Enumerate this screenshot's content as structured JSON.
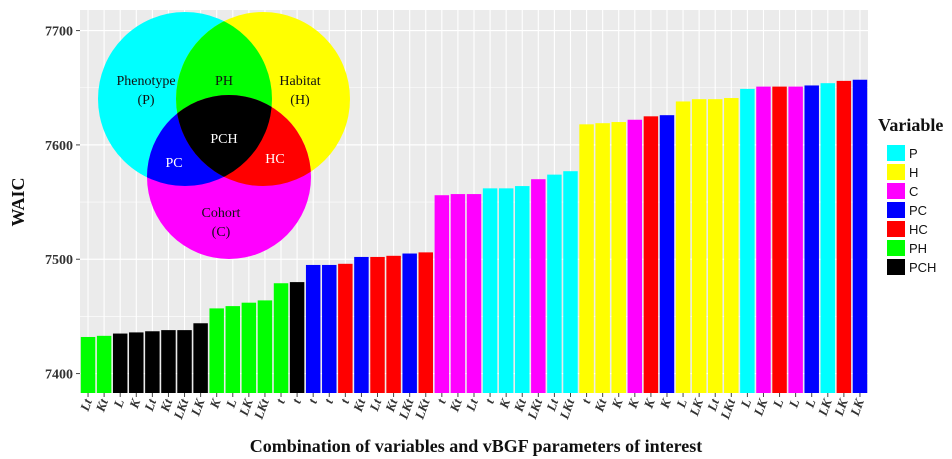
{
  "chart_data": {
    "type": "bar",
    "xlabel": "Combination of variables and vBGF parameters of interest",
    "ylabel": "WAIC",
    "ylim": [
      7383,
      7718
    ],
    "yticks": [
      7400,
      7500,
      7600,
      7700
    ],
    "grid": true,
    "legend": {
      "title": "Variable",
      "placement": "right",
      "entries": [
        {
          "name": "P",
          "color": "#00ffff"
        },
        {
          "name": "H",
          "color": "#ffff00"
        },
        {
          "name": "C",
          "color": "#ff00ff"
        },
        {
          "name": "PC",
          "color": "#0000ff"
        },
        {
          "name": "HC",
          "color": "#ff0000"
        },
        {
          "name": "PH",
          "color": "#00ff00"
        },
        {
          "name": "PCH",
          "color": "#000000"
        }
      ]
    },
    "bars": [
      {
        "label": "Lt",
        "variable": "PH",
        "value": 7432
      },
      {
        "label": "Kt",
        "variable": "PH",
        "value": 7433
      },
      {
        "label": "L",
        "variable": "PCH",
        "value": 7435
      },
      {
        "label": "K",
        "variable": "PCH",
        "value": 7436
      },
      {
        "label": "Lt",
        "variable": "PCH",
        "value": 7437
      },
      {
        "label": "Kt",
        "variable": "PCH",
        "value": 7438
      },
      {
        "label": "LKt",
        "variable": "PCH",
        "value": 7438
      },
      {
        "label": "LK",
        "variable": "PCH",
        "value": 7444
      },
      {
        "label": "K",
        "variable": "PH",
        "value": 7457
      },
      {
        "label": "L",
        "variable": "PH",
        "value": 7459
      },
      {
        "label": "LK",
        "variable": "PH",
        "value": 7462
      },
      {
        "label": "LKt",
        "variable": "PH",
        "value": 7464
      },
      {
        "label": "t",
        "variable": "PH",
        "value": 7479
      },
      {
        "label": "t",
        "variable": "PCH",
        "value": 7480
      },
      {
        "label": "t",
        "variable": "PC",
        "value": 7495
      },
      {
        "label": "t",
        "variable": "PC",
        "value": 7495
      },
      {
        "label": "t",
        "variable": "HC",
        "value": 7496
      },
      {
        "label": "Kt",
        "variable": "PC",
        "value": 7502
      },
      {
        "label": "Lt",
        "variable": "HC",
        "value": 7502
      },
      {
        "label": "Kt",
        "variable": "HC",
        "value": 7503
      },
      {
        "label": "LKt",
        "variable": "PC",
        "value": 7505
      },
      {
        "label": "LKt",
        "variable": "HC",
        "value": 7506
      },
      {
        "label": "t",
        "variable": "C",
        "value": 7556
      },
      {
        "label": "Kt",
        "variable": "C",
        "value": 7557
      },
      {
        "label": "Lt",
        "variable": "C",
        "value": 7557
      },
      {
        "label": "t",
        "variable": "P",
        "value": 7562
      },
      {
        "label": "K",
        "variable": "P",
        "value": 7562
      },
      {
        "label": "Kt",
        "variable": "P",
        "value": 7564
      },
      {
        "label": "LKt",
        "variable": "C",
        "value": 7570
      },
      {
        "label": "Lt",
        "variable": "P",
        "value": 7574
      },
      {
        "label": "LKt",
        "variable": "P",
        "value": 7577
      },
      {
        "label": "t",
        "variable": "H",
        "value": 7618
      },
      {
        "label": "Kt",
        "variable": "H",
        "value": 7619
      },
      {
        "label": "K",
        "variable": "H",
        "value": 7620
      },
      {
        "label": "K",
        "variable": "C",
        "value": 7622
      },
      {
        "label": "K",
        "variable": "HC",
        "value": 7625
      },
      {
        "label": "K",
        "variable": "PC",
        "value": 7626
      },
      {
        "label": "L",
        "variable": "H",
        "value": 7638
      },
      {
        "label": "LK",
        "variable": "H",
        "value": 7640
      },
      {
        "label": "Lt",
        "variable": "H",
        "value": 7640
      },
      {
        "label": "LKt",
        "variable": "H",
        "value": 7641
      },
      {
        "label": "L",
        "variable": "P",
        "value": 7649
      },
      {
        "label": "LK",
        "variable": "C",
        "value": 7651
      },
      {
        "label": "L",
        "variable": "HC",
        "value": 7651
      },
      {
        "label": "L",
        "variable": "C",
        "value": 7651
      },
      {
        "label": "L",
        "variable": "PC",
        "value": 7652
      },
      {
        "label": "LK",
        "variable": "P",
        "value": 7654
      },
      {
        "label": "LK",
        "variable": "HC",
        "value": 7656
      },
      {
        "label": "LK",
        "variable": "PC",
        "value": 7657
      }
    ],
    "venn": {
      "phenotype": "Phenotype",
      "phenotype_abbr": "(P)",
      "habitat": "Habitat",
      "habitat_abbr": "(H)",
      "cohort": "Cohort",
      "cohort_abbr": "(C)",
      "ph": "PH",
      "pc": "PC",
      "hc": "HC",
      "pch": "PCH"
    }
  }
}
